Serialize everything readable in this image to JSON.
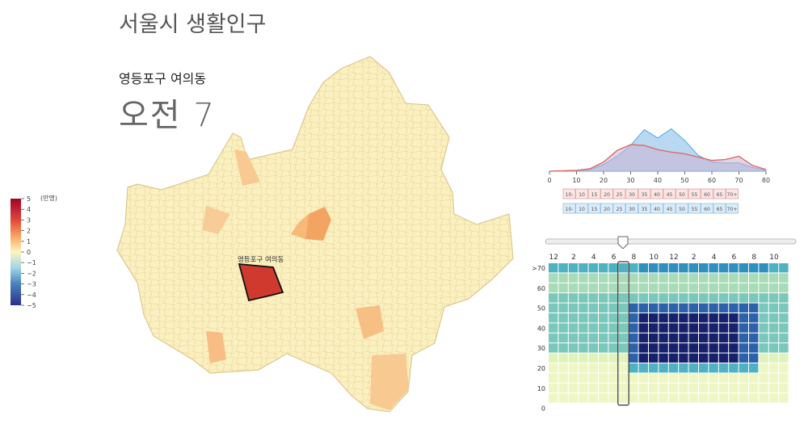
{
  "header": {
    "title": "서울시 생활인구",
    "district": "영등포구 여의동",
    "time": "오전 7"
  },
  "colors": {
    "highlight": "#d03a2e",
    "female_line": "#e06a6a",
    "male_fill": "#b9d9f3",
    "male_line": "#56a8df"
  },
  "legend": {
    "unit": "(만명)",
    "ticks": [
      "5",
      "4",
      "3",
      "2",
      "1",
      "0",
      "−1",
      "−2",
      "−3",
      "−4",
      "−5"
    ]
  },
  "map": {
    "label": "영등포구 여의동"
  },
  "chart_data": [
    {
      "type": "area",
      "xlim": [
        0,
        80
      ],
      "x_ticks": [
        "0",
        "10",
        "20",
        "30",
        "40",
        "50",
        "60",
        "70",
        "80"
      ],
      "series": [
        {
          "name": "",
          "color": "#e06a6a",
          "x": [
            0,
            10,
            15,
            20,
            25,
            30,
            35,
            40,
            45,
            50,
            55,
            60,
            65,
            70,
            75,
            80
          ],
          "values": [
            0,
            0.2,
            0.6,
            2.2,
            5.0,
            6.4,
            6.2,
            5.2,
            4.6,
            4.2,
            3.4,
            2.6,
            2.8,
            3.6,
            1.4,
            0.4
          ]
        },
        {
          "name": "",
          "color": "#56a8df",
          "x": [
            0,
            10,
            15,
            20,
            25,
            30,
            35,
            40,
            45,
            50,
            55,
            60,
            65,
            70,
            75,
            80
          ],
          "values": [
            0,
            0.1,
            0.4,
            1.6,
            3.6,
            6.2,
            10.0,
            8.0,
            10.2,
            7.4,
            3.8,
            2.2,
            2.0,
            2.0,
            0.9,
            0.2
          ]
        }
      ],
      "age_buttons": [
        "10-",
        "10",
        "15",
        "20",
        "25",
        "30",
        "35",
        "40",
        "45",
        "50",
        "55",
        "60",
        "65",
        "70+"
      ]
    },
    {
      "type": "heatmap",
      "x_ticks": [
        "12",
        "2",
        "4",
        "6",
        "8",
        "10",
        "12",
        "2",
        "4",
        "6",
        "8",
        "10"
      ],
      "y_ticks": [
        ">70",
        "60",
        "50",
        "40",
        "30",
        "20",
        "10",
        "0"
      ],
      "n_hours": 24,
      "n_age_groups": 14,
      "selected_hour": 7
    }
  ]
}
